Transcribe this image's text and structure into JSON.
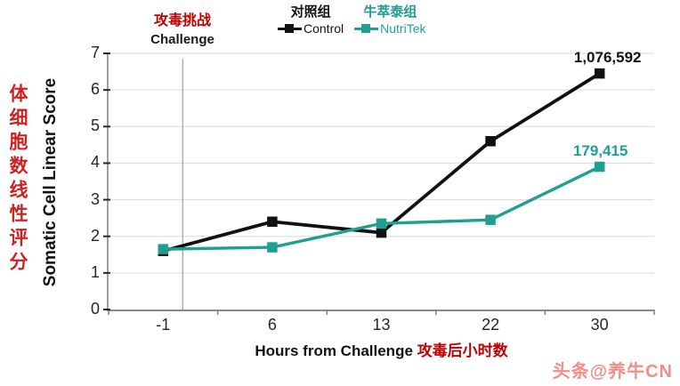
{
  "chart_data": {
    "type": "line",
    "x": [
      -1,
      6,
      13,
      22,
      30
    ],
    "xtick_labels": [
      "-1",
      "6",
      "13",
      "22",
      "30"
    ],
    "yticks": [
      0,
      1,
      2,
      3,
      4,
      5,
      6,
      7
    ],
    "ylim": [
      0,
      7
    ],
    "grid": "horizontal-light",
    "legend_position": "top-center",
    "xlabel": "Hours from Challenge",
    "xlabel_cn": "攻毒后小时数",
    "ylabel": "Somatic Cell Linear Score",
    "ylabel_cn": "体细胞数线性评分",
    "series": [
      {
        "name": "Control",
        "name_cn": "对照组",
        "color": "#111111",
        "values": [
          1.6,
          2.4,
          2.1,
          4.6,
          6.45
        ],
        "end_label": "1,076,592"
      },
      {
        "name": "NutriTek",
        "name_cn": "牛萃泰组",
        "color": "#1f9e92",
        "values": [
          1.65,
          1.7,
          2.35,
          2.45,
          3.9
        ],
        "end_label": "179,415"
      }
    ],
    "annotation": {
      "label_cn": "攻毒挑战",
      "label_en": "Challenge"
    }
  },
  "colors": {
    "accent_red": "#c00000",
    "ylabel_cn_red": "#cc2222",
    "teal": "#1f9e92",
    "gridline": "#d9d9d9",
    "axis": "#8a8a8a",
    "tick": "#262626",
    "challenge_line": "#a6a6a6",
    "watermark": "#ee8f88"
  },
  "watermark": "头条@养牛CN"
}
